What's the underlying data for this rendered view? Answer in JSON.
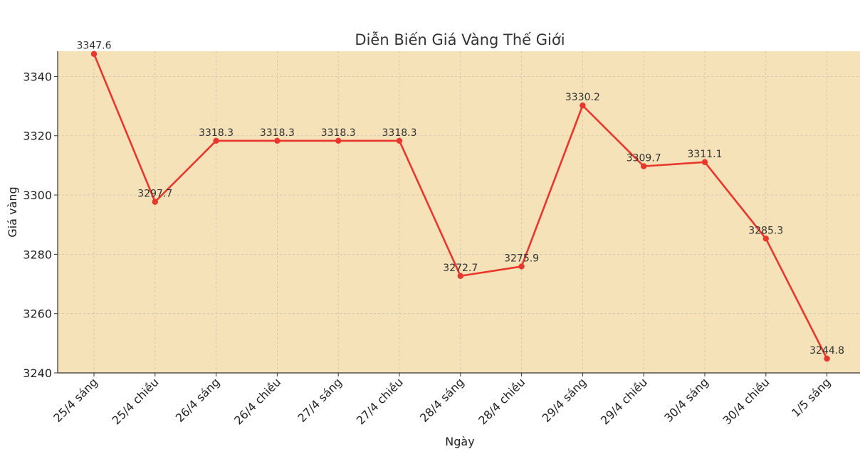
{
  "chart_data": {
    "type": "line",
    "title": "Diễn Biến Giá Vàng Thế Giới",
    "xlabel": "Ngày",
    "ylabel": "Giá vàng",
    "categories": [
      "25/4 sáng",
      "25/4 chiều",
      "26/4 sáng",
      "26/4 chiều",
      "27/4 sáng",
      "27/4 chiều",
      "28/4 sáng",
      "28/4 chiều",
      "29/4 sáng",
      "29/4 chiều",
      "30/4 sáng",
      "30/4 chiều",
      "1/5 sáng"
    ],
    "series": [
      {
        "values": [
          3347.6,
          3297.7,
          3318.3,
          3318.3,
          3318.3,
          3318.3,
          3272.7,
          3275.9,
          3330.2,
          3309.7,
          3311.1,
          3285.3,
          3244.8
        ]
      }
    ],
    "data_labels": [
      "3347.6",
      "3297.7",
      "3318.3",
      "3318.3",
      "3318.3",
      "3318.3",
      "3272.7",
      "3275.9",
      "3330.2",
      "3309.7",
      "3311.1",
      "3285.3",
      "3244.8"
    ],
    "ylim": [
      3240,
      3348.5
    ],
    "yticks": [
      "3240",
      "3260",
      "3280",
      "3300",
      "3320",
      "3340"
    ],
    "grid": true,
    "colors": {
      "line": "#e8372c",
      "plot_background": "#f5e2b8",
      "axis": "#333333"
    }
  }
}
